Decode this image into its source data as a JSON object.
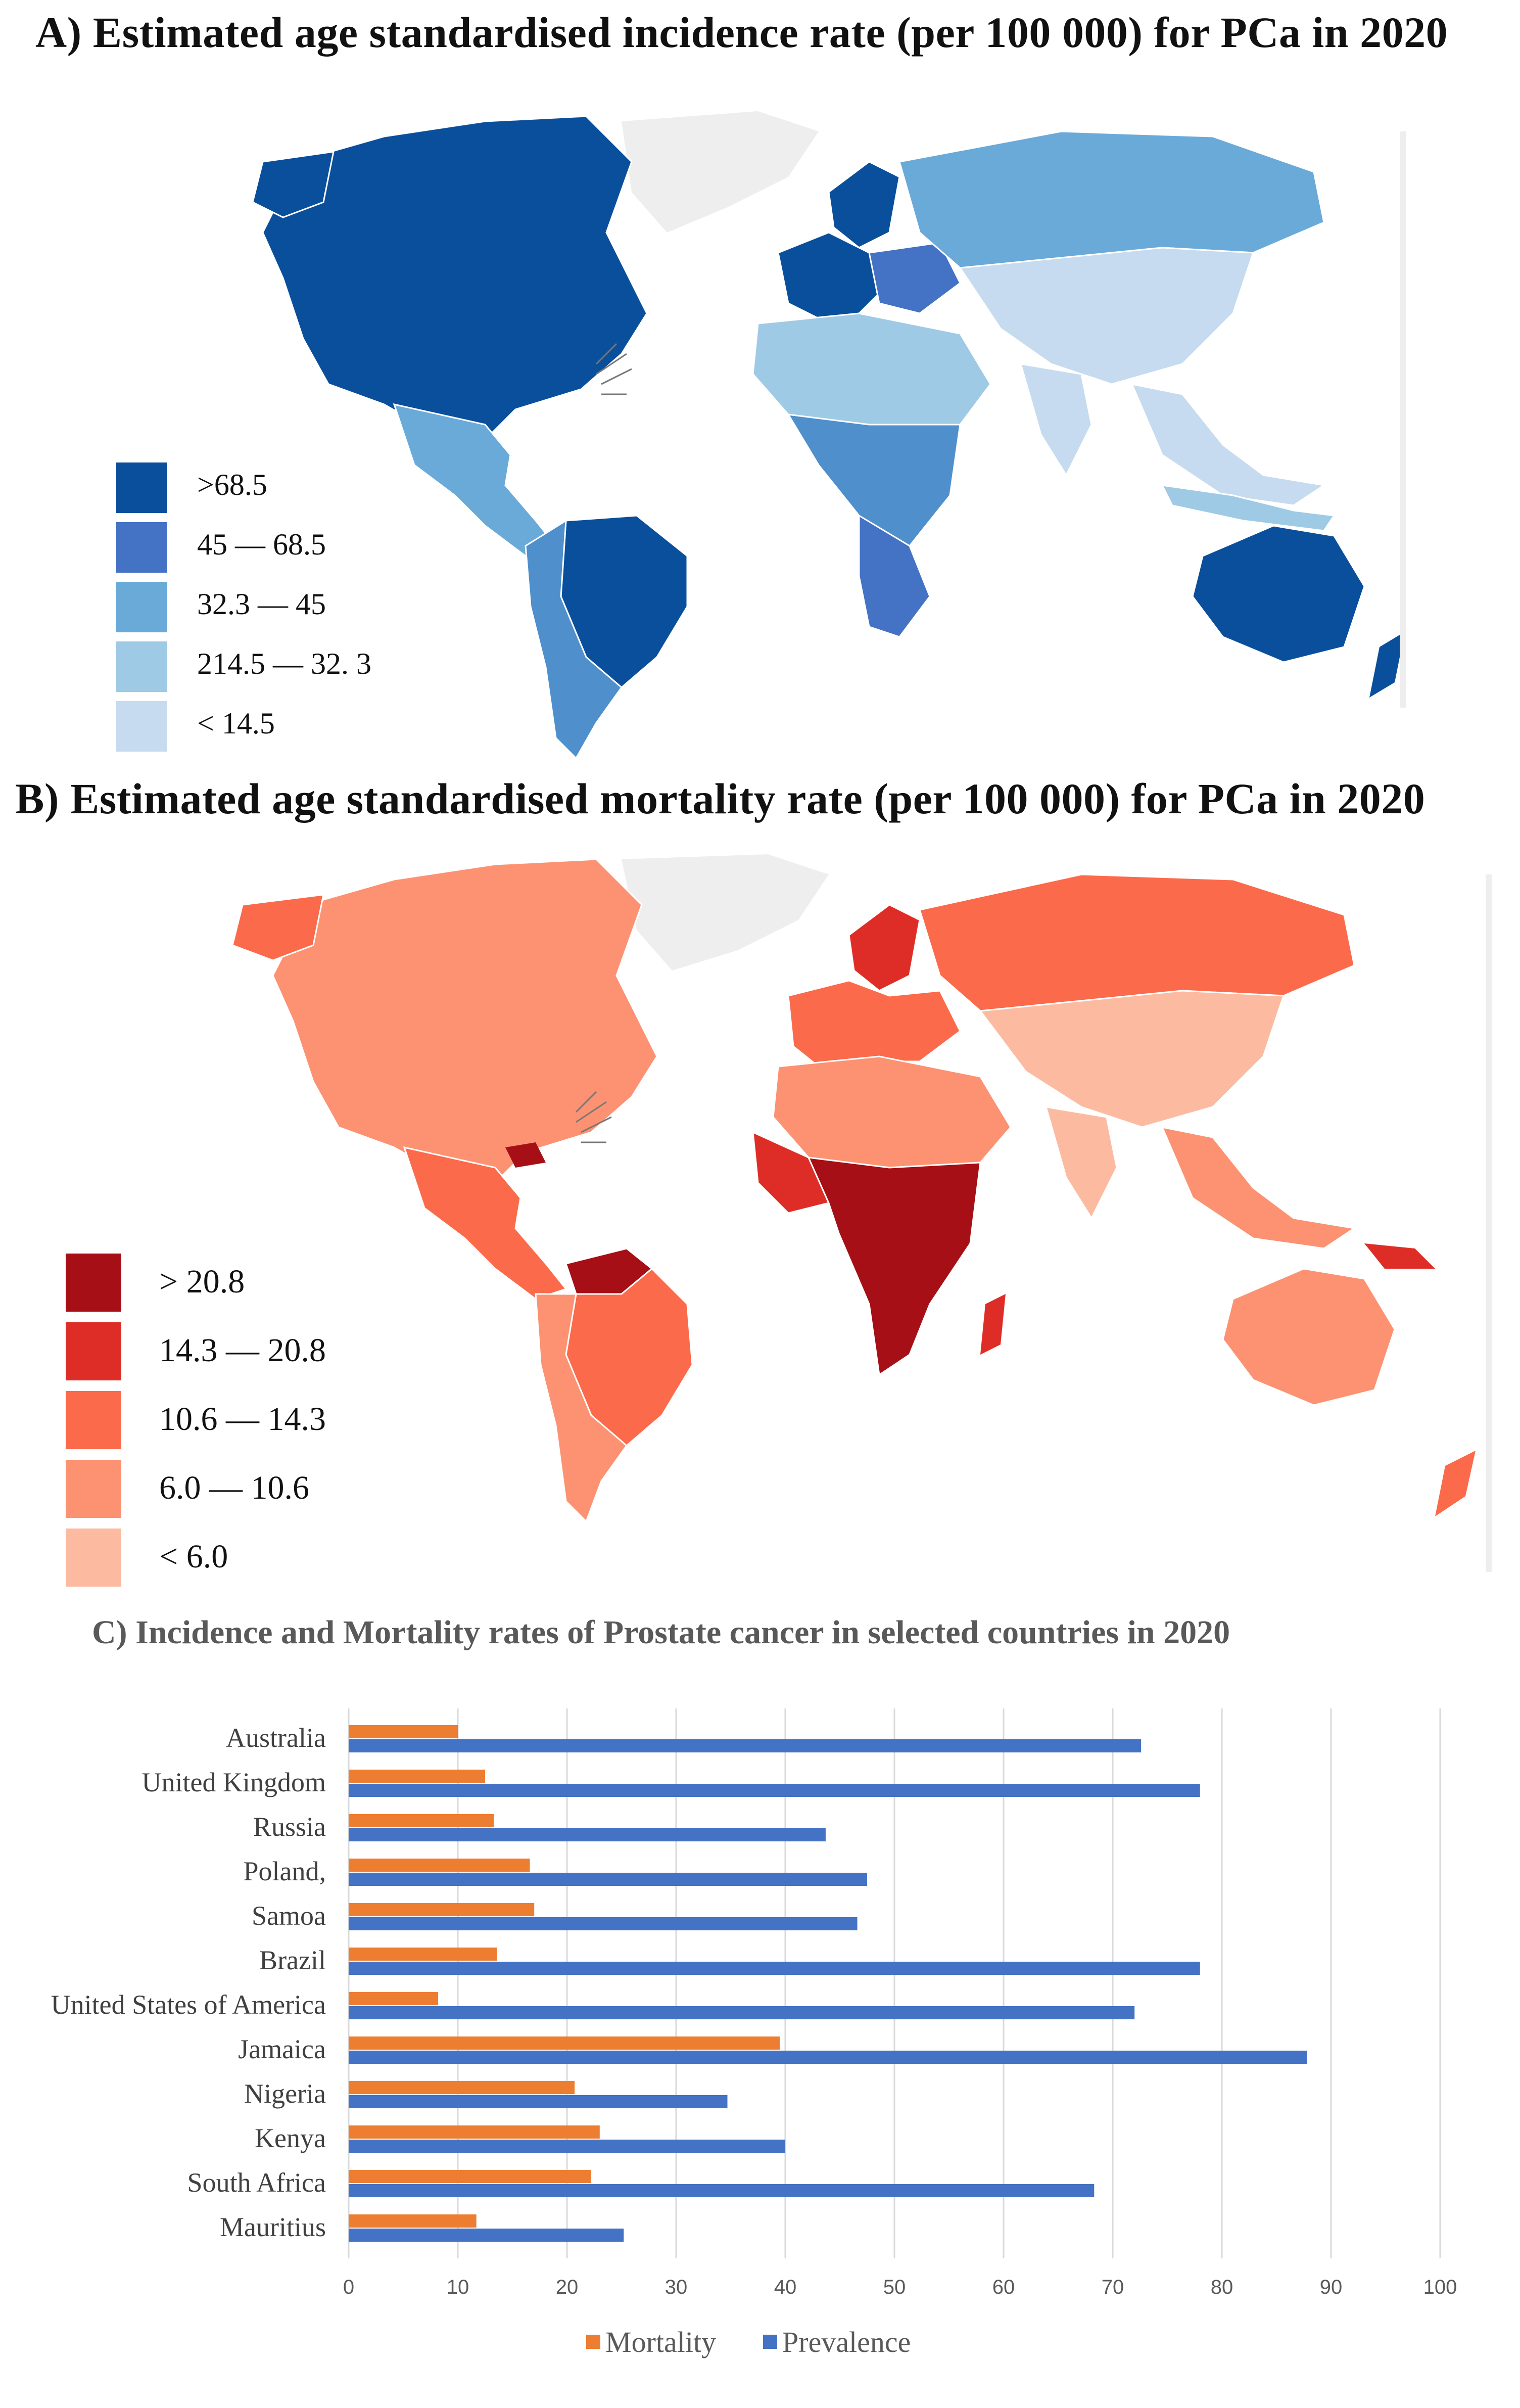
{
  "panel_a": {
    "title": "A) Estimated  age standardised  incidence rate (per 100 000) for  PCa in 2020",
    "legend": [
      {
        "label": ">68.5",
        "color": "#0a4f9c"
      },
      {
        "label": "45 — 68.5",
        "color": "#4472c4"
      },
      {
        "label": "32.3 — 45",
        "color": "#6aaad9"
      },
      {
        "label": "214.5 — 32. 3",
        "color": "#9ecae6"
      },
      {
        "label": "< 14.5",
        "color": "#c6dbef"
      }
    ]
  },
  "panel_b": {
    "title": "B) Estimated  age standardised  mortality rate (per 100 000) for  PCa in 2020",
    "legend": [
      {
        "label": "> 20.8",
        "color": "#a50f15"
      },
      {
        "label": "14.3 — 20.8",
        "color": "#de2d26"
      },
      {
        "label": "10.6 — 14.3",
        "color": "#fb6a4a"
      },
      {
        "label": "6.0 — 10.6",
        "color": "#fc9272"
      },
      {
        "label": "<   6.0",
        "color": "#fcbba1"
      }
    ]
  },
  "panel_c": {
    "title": "C)  Incidence and Mortality rates of Prostate cancer in selected countries in 2020"
  },
  "chart_data": {
    "type": "bar",
    "orientation": "horizontal",
    "title": "C)  Incidence and Mortality rates of Prostate cancer in selected countries in 2020",
    "categories": [
      "Australia",
      "United Kingdom",
      "Russia",
      "Poland,",
      "Samoa",
      "Brazil",
      "United States of America",
      "Jamaica",
      "Nigeria",
      "Kenya",
      "South Africa",
      "Mauritius"
    ],
    "series": [
      {
        "name": "Mortality",
        "color": "#ed7d31",
        "values": [
          10,
          12.5,
          13.3,
          16.6,
          17,
          13.6,
          8.2,
          39.5,
          20.7,
          23,
          22.2,
          11.7
        ]
      },
      {
        "name": "Prevalence",
        "color": "#4472c4",
        "values": [
          72.6,
          78,
          43.7,
          47.5,
          46.6,
          78,
          72,
          87.8,
          34.7,
          40,
          68.3,
          25.2
        ]
      }
    ],
    "xlim": [
      0,
      100
    ],
    "xticks": [
      "0",
      "10",
      "20",
      "30",
      "40",
      "50",
      "60",
      "70",
      "80",
      "90",
      "100"
    ],
    "grid": true,
    "legend_position": "bottom"
  }
}
